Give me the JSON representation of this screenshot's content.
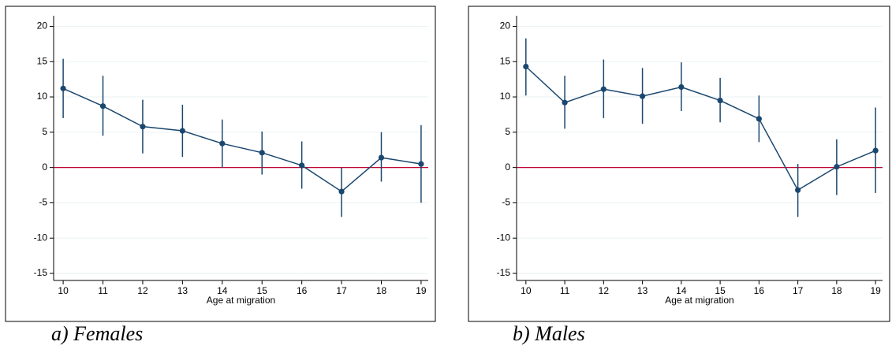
{
  "chart_data": [
    {
      "type": "line",
      "caption": "a)  Females",
      "xlabel": "Age at migration",
      "x": [
        10,
        11,
        12,
        13,
        14,
        15,
        16,
        17,
        18,
        19
      ],
      "series": [
        {
          "color": "#1a476f",
          "values": [
            11.2,
            8.7,
            5.8,
            5.2,
            3.4,
            2.1,
            0.3,
            -3.4,
            1.4,
            0.5
          ],
          "lower": [
            7,
            4.5,
            2,
            1.5,
            0,
            -1,
            -3,
            -7,
            -2,
            -5
          ],
          "upper": [
            15.4,
            13,
            9.6,
            8.9,
            6.8,
            5.1,
            3.7,
            0,
            5,
            6
          ]
        }
      ],
      "hline": 0,
      "hline_color": "#c10534",
      "xlim": [
        9.76,
        19.18
      ],
      "xticks": [
        10,
        11,
        12,
        13,
        14,
        15,
        16,
        17,
        18,
        19
      ],
      "ylim": [
        -16,
        21.5
      ],
      "yticks": [
        -15,
        -10,
        -5,
        0,
        5,
        10,
        15,
        20
      ],
      "grid": true
    },
    {
      "type": "line",
      "caption": "b) Males",
      "xlabel": "Age at migration",
      "x": [
        10,
        11,
        12,
        13,
        14,
        15,
        16,
        17,
        18,
        19
      ],
      "series": [
        {
          "color": "#1a476f",
          "values": [
            14.3,
            9.2,
            11.1,
            10.1,
            11.4,
            9.5,
            6.9,
            -3.2,
            0.1,
            2.4
          ],
          "lower": [
            10.2,
            5.5,
            7,
            6.2,
            8,
            6.4,
            3.6,
            -7,
            -3.9,
            -3.6
          ],
          "upper": [
            18.3,
            13,
            15.3,
            14.1,
            14.9,
            12.7,
            10.2,
            0.5,
            4,
            8.5
          ]
        }
      ],
      "hline": 0,
      "hline_color": "#c10534",
      "xlim": [
        9.76,
        19.18
      ],
      "xticks": [
        10,
        11,
        12,
        13,
        14,
        15,
        16,
        17,
        18,
        19
      ],
      "ylim": [
        -16,
        21.5
      ],
      "yticks": [
        -15,
        -10,
        -5,
        0,
        5,
        10,
        15,
        20
      ],
      "grid": true
    }
  ]
}
